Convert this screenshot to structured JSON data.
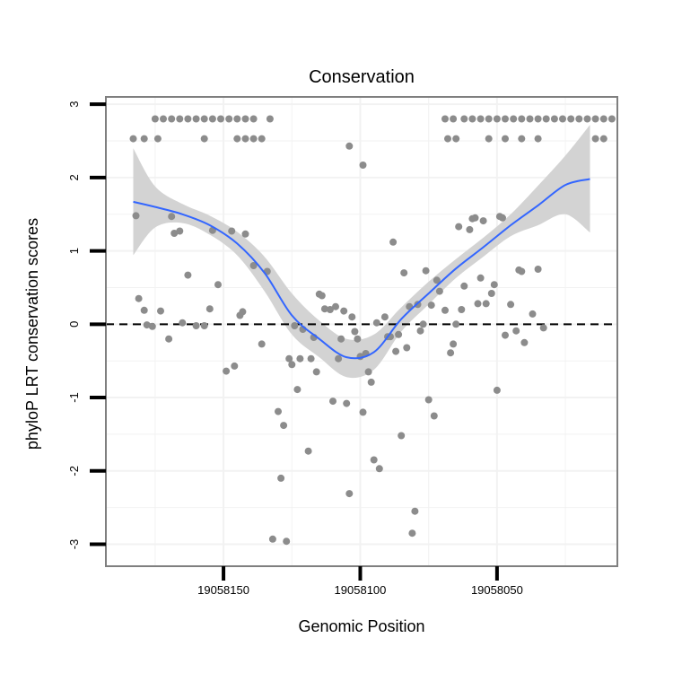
{
  "chart_data": {
    "type": "scatter",
    "title": "Conservation",
    "xlabel": "Genomic Position",
    "ylabel": "phyloP LRT conservation scores",
    "x_reversed": true,
    "xlim": [
      19058193,
      19058006
    ],
    "ylim": [
      -3.3,
      3.1
    ],
    "x_ticks": [
      19058150,
      19058100,
      19058050
    ],
    "x_tick_labels": [
      "19058150",
      "19058100",
      "19058050"
    ],
    "y_ticks": [
      -3,
      -2,
      -1,
      0,
      1,
      2,
      3
    ],
    "y_tick_labels": [
      "-3",
      "-2",
      "-1",
      "0",
      "1",
      "2",
      "3"
    ],
    "reference_line": 0,
    "colors": {
      "points": "#8c8c8c",
      "smooth": "#3366ff",
      "band": "#d3d3d3",
      "panel_border": "#7f7f7f",
      "grid": "#f2f2f2"
    },
    "points": [
      [
        19058183,
        2.53
      ],
      [
        19058179,
        2.53
      ],
      [
        19058175,
        2.8
      ],
      [
        19058172,
        2.8
      ],
      [
        19058169,
        2.8
      ],
      [
        19058166,
        2.8
      ],
      [
        19058163,
        2.8
      ],
      [
        19058174,
        2.53
      ],
      [
        19058160,
        2.8
      ],
      [
        19058157,
        2.8
      ],
      [
        19058154,
        2.8
      ],
      [
        19058151,
        2.8
      ],
      [
        19058148,
        2.8
      ],
      [
        19058145,
        2.8
      ],
      [
        19058142,
        2.8
      ],
      [
        19058139,
        2.8
      ],
      [
        19058157,
        2.53
      ],
      [
        19058145,
        2.53
      ],
      [
        19058142,
        2.53
      ],
      [
        19058139,
        2.53
      ],
      [
        19058136,
        2.53
      ],
      [
        19058133,
        2.8
      ],
      [
        19058053,
        2.8
      ],
      [
        19058050,
        2.8
      ],
      [
        19058047,
        2.8
      ],
      [
        19058044,
        2.8
      ],
      [
        19058041,
        2.8
      ],
      [
        19058038,
        2.8
      ],
      [
        19058035,
        2.8
      ],
      [
        19058032,
        2.8
      ],
      [
        19058029,
        2.8
      ],
      [
        19058026,
        2.8
      ],
      [
        19058023,
        2.8
      ],
      [
        19058020,
        2.8
      ],
      [
        19058017,
        2.8
      ],
      [
        19058014,
        2.8
      ],
      [
        19058011,
        2.8
      ],
      [
        19058008,
        2.8
      ],
      [
        19058069,
        2.8
      ],
      [
        19058066,
        2.8
      ],
      [
        19058062,
        2.8
      ],
      [
        19058059,
        2.8
      ],
      [
        19058056,
        2.8
      ],
      [
        19058068,
        2.53
      ],
      [
        19058065,
        2.53
      ],
      [
        19058053,
        2.53
      ],
      [
        19058047,
        2.53
      ],
      [
        19058041,
        2.53
      ],
      [
        19058035,
        2.53
      ],
      [
        19058014,
        2.53
      ],
      [
        19058011,
        2.53
      ],
      [
        19058104,
        2.43
      ],
      [
        19058099,
        2.17
      ],
      [
        19058182,
        1.48
      ],
      [
        19058181,
        0.35
      ],
      [
        19058179,
        0.19
      ],
      [
        19058178,
        -0.01
      ],
      [
        19058176,
        -0.03
      ],
      [
        19058173,
        0.18
      ],
      [
        19058170,
        -0.2
      ],
      [
        19058169,
        1.47
      ],
      [
        19058168,
        1.24
      ],
      [
        19058166,
        1.27
      ],
      [
        19058165,
        0.02
      ],
      [
        19058163,
        0.67
      ],
      [
        19058160,
        -0.02
      ],
      [
        19058157,
        -0.02
      ],
      [
        19058155,
        0.21
      ],
      [
        19058154,
        1.28
      ],
      [
        19058152,
        0.54
      ],
      [
        19058149,
        -0.64
      ],
      [
        19058147,
        1.27
      ],
      [
        19058146,
        -0.57
      ],
      [
        19058144,
        0.12
      ],
      [
        19058143,
        0.17
      ],
      [
        19058142,
        1.23
      ],
      [
        19058139,
        0.8
      ],
      [
        19058136,
        -0.27
      ],
      [
        19058134,
        0.72
      ],
      [
        19058132,
        -2.93
      ],
      [
        19058130,
        -1.19
      ],
      [
        19058129,
        -2.1
      ],
      [
        19058128,
        -1.38
      ],
      [
        19058127,
        -2.96
      ],
      [
        19058126,
        -0.47
      ],
      [
        19058125,
        -0.55
      ],
      [
        19058124,
        -0.02
      ],
      [
        19058123,
        -0.89
      ],
      [
        19058122,
        -0.47
      ],
      [
        19058121,
        -0.07
      ],
      [
        19058119,
        -1.73
      ],
      [
        19058118,
        -0.47
      ],
      [
        19058117,
        -0.18
      ],
      [
        19058116,
        -0.65
      ],
      [
        19058115,
        0.41
      ],
      [
        19058114,
        0.39
      ],
      [
        19058113,
        0.21
      ],
      [
        19058111,
        0.2
      ],
      [
        19058110,
        -1.05
      ],
      [
        19058109,
        0.24
      ],
      [
        19058108,
        -0.47
      ],
      [
        19058107,
        -0.2
      ],
      [
        19058106,
        0.18
      ],
      [
        19058105,
        -1.08
      ],
      [
        19058104,
        -2.31
      ],
      [
        19058103,
        0.1
      ],
      [
        19058102,
        -0.1
      ],
      [
        19058101,
        -0.2
      ],
      [
        19058100,
        -0.44
      ],
      [
        19058099,
        -1.2
      ],
      [
        19058098,
        -0.4
      ],
      [
        19058097,
        -0.65
      ],
      [
        19058096,
        -0.79
      ],
      [
        19058095,
        -1.85
      ],
      [
        19058094,
        0.02
      ],
      [
        19058093,
        -1.97
      ],
      [
        19058091,
        0.1
      ],
      [
        19058090,
        -0.17
      ],
      [
        19058089,
        -0.17
      ],
      [
        19058088,
        1.12
      ],
      [
        19058087,
        -0.37
      ],
      [
        19058086,
        -0.14
      ],
      [
        19058085,
        -1.52
      ],
      [
        19058084,
        0.7
      ],
      [
        19058083,
        -0.32
      ],
      [
        19058082,
        0.24
      ],
      [
        19058081,
        -2.85
      ],
      [
        19058080,
        -2.55
      ],
      [
        19058079,
        0.27
      ],
      [
        19058078,
        -0.09
      ],
      [
        19058077,
        0.0
      ],
      [
        19058076,
        0.73
      ],
      [
        19058075,
        -1.03
      ],
      [
        19058074,
        0.26
      ],
      [
        19058073,
        -1.25
      ],
      [
        19058072,
        0.6
      ],
      [
        19058071,
        0.45
      ],
      [
        19058069,
        0.19
      ],
      [
        19058067,
        -0.39
      ],
      [
        19058066,
        -0.27
      ],
      [
        19058065,
        0.0
      ],
      [
        19058064,
        1.33
      ],
      [
        19058063,
        0.2
      ],
      [
        19058062,
        0.52
      ],
      [
        19058060,
        1.29
      ],
      [
        19058059,
        1.44
      ],
      [
        19058058,
        1.45
      ],
      [
        19058057,
        0.28
      ],
      [
        19058056,
        0.63
      ],
      [
        19058055,
        1.41
      ],
      [
        19058054,
        0.28
      ],
      [
        19058052,
        0.42
      ],
      [
        19058051,
        0.54
      ],
      [
        19058050,
        -0.9
      ],
      [
        19058049,
        1.47
      ],
      [
        19058048,
        1.45
      ],
      [
        19058047,
        -0.15
      ],
      [
        19058045,
        0.27
      ],
      [
        19058043,
        -0.09
      ],
      [
        19058042,
        0.74
      ],
      [
        19058041,
        0.72
      ],
      [
        19058040,
        -0.25
      ],
      [
        19058037,
        0.14
      ],
      [
        19058035,
        0.75
      ],
      [
        19058033,
        -0.05
      ]
    ],
    "smooth_line": {
      "x": [
        19058183,
        19058175,
        19058165,
        19058155,
        19058145,
        19058135,
        19058125,
        19058115,
        19058105,
        19058095,
        19058085,
        19058075,
        19058065,
        19058055,
        19058045,
        19058035,
        19058025,
        19058016
      ],
      "y": [
        1.67,
        1.6,
        1.5,
        1.35,
        1.1,
        0.7,
        0.12,
        -0.2,
        -0.45,
        -0.38,
        0.07,
        0.42,
        0.76,
        1.05,
        1.35,
        1.62,
        1.9,
        1.98
      ],
      "lower": [
        0.94,
        1.32,
        1.38,
        1.22,
        0.94,
        0.45,
        -0.14,
        -0.45,
        -0.72,
        -0.62,
        -0.1,
        0.27,
        0.63,
        0.92,
        1.2,
        1.35,
        1.5,
        1.25
      ],
      "upper": [
        2.4,
        1.88,
        1.64,
        1.48,
        1.26,
        0.92,
        0.42,
        0.05,
        -0.2,
        -0.14,
        0.23,
        0.58,
        0.89,
        1.18,
        1.5,
        1.89,
        2.3,
        2.72
      ]
    }
  }
}
